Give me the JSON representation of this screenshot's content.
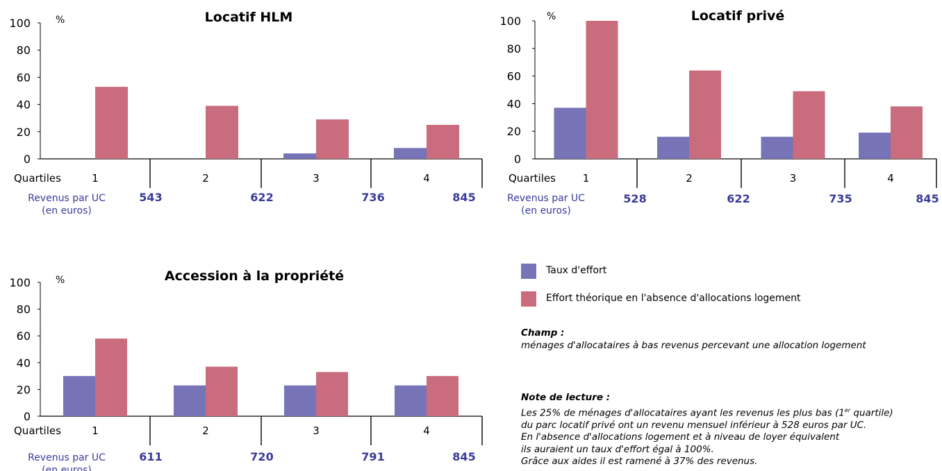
{
  "colors": {
    "taux": "#7673b7",
    "effort": "#c96c7e",
    "revenu": "#3a3a9a"
  },
  "chart_data": [
    {
      "type": "bar",
      "title": "Locatif HLM",
      "yunit": "%",
      "ylim": [
        0,
        100
      ],
      "yticks": [
        "0",
        "20",
        "40",
        "60",
        "80",
        "100"
      ],
      "x_label": "Quartiles",
      "categories": [
        "1",
        "2",
        "3",
        "4"
      ],
      "series": [
        {
          "key": "taux",
          "values": [
            0,
            0,
            4,
            8
          ]
        },
        {
          "key": "effort",
          "values": [
            53,
            39,
            29,
            25
          ]
        }
      ],
      "revenus_label": [
        "Revenus par UC",
        "(en euros)"
      ],
      "revenus": [
        "543",
        "622",
        "736",
        "845"
      ]
    },
    {
      "type": "bar",
      "title": "Locatif privé",
      "yunit": "%",
      "ylim": [
        0,
        100
      ],
      "yticks": [
        "0",
        "20",
        "40",
        "60",
        "80",
        "100"
      ],
      "x_label": "Quartiles",
      "categories": [
        "1",
        "2",
        "3",
        "4"
      ],
      "series": [
        {
          "key": "taux",
          "values": [
            37,
            16,
            16,
            19
          ]
        },
        {
          "key": "effort",
          "values": [
            100,
            64,
            49,
            38
          ]
        }
      ],
      "revenus_label": [
        "Revenus par UC",
        "(en euros)"
      ],
      "revenus": [
        "528",
        "622",
        "735",
        "845"
      ]
    },
    {
      "type": "bar",
      "title": "Accession à la propriété",
      "yunit": "%",
      "ylim": [
        0,
        100
      ],
      "yticks": [
        "0",
        "20",
        "40",
        "60",
        "80",
        "100"
      ],
      "x_label": "Quartiles",
      "categories": [
        "1",
        "2",
        "3",
        "4"
      ],
      "series": [
        {
          "key": "taux",
          "values": [
            30,
            23,
            23,
            23
          ]
        },
        {
          "key": "effort",
          "values": [
            58,
            37,
            33,
            30
          ]
        }
      ],
      "revenus_label": [
        "Revenus par UC",
        "(en euros)"
      ],
      "revenus": [
        "611",
        "720",
        "791",
        "845"
      ]
    }
  ],
  "legend": {
    "taux": "Taux d'effort",
    "effort": "Effort théorique en l'absence d'allocations logement"
  },
  "champ": {
    "title": "Champ :",
    "text": "ménages d'allocataires à bas revenus percevant une allocation logement"
  },
  "note": {
    "title": "Note de lecture :",
    "line1_pre": "Les 25% de ménages d'allocataires ayant les revenus les plus bas (1",
    "line1_sup": "er",
    "line1_post": " quartile)",
    "line2": "du parc locatif privé ont un revenu mensuel inférieur à 528 euros par UC.",
    "line3": "En l'absence d'allocations logement et à niveau de loyer équivalent",
    "line4": "ils auraient un taux d'effort égal à 100%.",
    "line5": "Grâce aux aides il est ramené à 37% des revenus."
  }
}
